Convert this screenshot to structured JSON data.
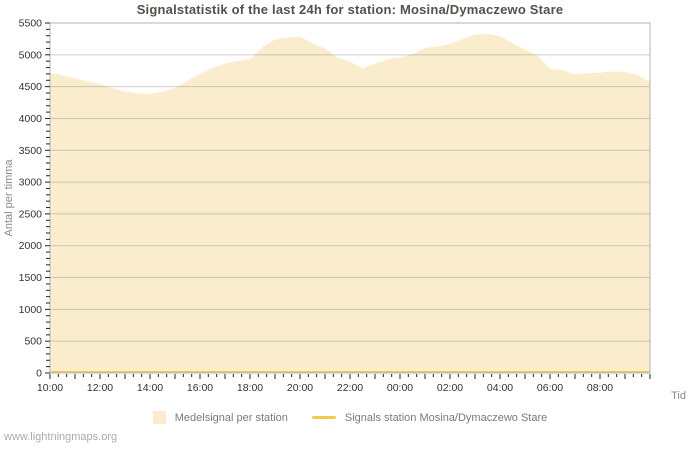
{
  "page": {
    "watermark": "www.lightningmaps.org"
  },
  "chart_data": {
    "type": "area",
    "title": "Signalstatistik of the last 24h for station: Mosina/Dymaczewo Stare",
    "ylabel": "Antal per timma",
    "xlabel": "Tid",
    "ylim": [
      0,
      5500
    ],
    "y_tick_step": 500,
    "y_minor_step": 100,
    "x_range_minutes": [
      0,
      1440
    ],
    "x_minor_step_minutes": 20,
    "x_major_step_minutes": 60,
    "x_label_step_minutes": 120,
    "x_tick_labels": [
      "10:00",
      "12:00",
      "14:00",
      "16:00",
      "18:00",
      "20:00",
      "22:00",
      "00:00",
      "02:00",
      "04:00",
      "06:00",
      "08:00"
    ],
    "grid": true,
    "legend_position": "bottom",
    "colors": {
      "area_fill": "#faedcd",
      "line": "#f1c94f",
      "grid": "#808080",
      "border": "#b3b3b3",
      "tick": "#222222",
      "axis_text": "#333333",
      "muted_text": "#8a8a8a"
    },
    "series": [
      {
        "name": "Medelsignal per station",
        "type": "area",
        "x_start_minute": 0,
        "x_step_minutes": 30,
        "values": [
          4720,
          4675,
          4630,
          4585,
          4540,
          4475,
          4425,
          4395,
          4385,
          4420,
          4480,
          4590,
          4700,
          4790,
          4865,
          4900,
          4930,
          5120,
          5240,
          5270,
          5285,
          5180,
          5100,
          4960,
          4890,
          4790,
          4855,
          4930,
          4960,
          5010,
          5110,
          5130,
          5170,
          5250,
          5315,
          5330,
          5290,
          5185,
          5080,
          4990,
          4780,
          4760,
          4690,
          4710,
          4720,
          4740,
          4730,
          4680,
          4580
        ]
      },
      {
        "name": "Signals station Mosina/Dymaczewo Stare",
        "type": "line",
        "x_start_minute": 0,
        "x_step_minutes": 1440,
        "values": [
          0,
          0
        ]
      }
    ]
  }
}
